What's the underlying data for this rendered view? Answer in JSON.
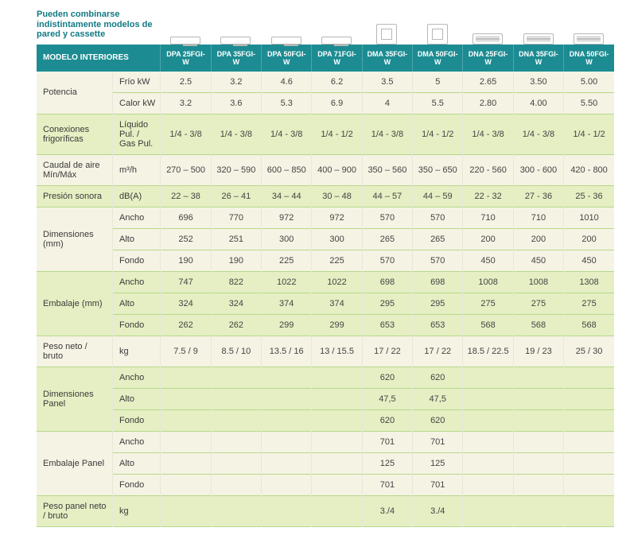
{
  "note": "Pueden combinarse indistintamente modelos de pared y cassette",
  "header": {
    "title": "MODELO INTERIORES",
    "models": [
      "DPA 25FGI-W",
      "DPA 35FGI-W",
      "DPA 50FGI-W",
      "DPA 71FGI-W",
      "DMA 35FGI-W",
      "DMA 50FGI-W",
      "DNA 25FGI-W",
      "DNA 35FGI-W",
      "DNA 50FGI-W"
    ]
  },
  "icon_types": [
    "wall",
    "wall",
    "wall",
    "wall",
    "cassette",
    "cassette",
    "duct",
    "duct",
    "duct"
  ],
  "colors": {
    "header_bg": "#1c8c92",
    "row_alt_a": "#f5f3e4",
    "row_alt_b": "#e5efc3",
    "row_border": "#b6d88b",
    "title_note": "#127a84"
  },
  "groups": [
    {
      "label": "Potencia",
      "bg": 0,
      "rows": [
        {
          "sub": "Frío kW",
          "v": [
            "2.5",
            "3.2",
            "4.6",
            "6.2",
            "3.5",
            "5",
            "2.65",
            "3.50",
            "5.00"
          ]
        },
        {
          "sub": "Calor kW",
          "v": [
            "3.2",
            "3.6",
            "5.3",
            "6.9",
            "4",
            "5.5",
            "2.80",
            "4.00",
            "5.50"
          ]
        }
      ]
    },
    {
      "label": "Conexiones frigoríficas",
      "bg": 1,
      "rows": [
        {
          "sub": "Líquido Pul. / Gas Pul.",
          "v": [
            "1/4 - 3/8",
            "1/4 - 3/8",
            "1/4 - 3/8",
            "1/4 - 1/2",
            "1/4 - 3/8",
            "1/4 - 1/2",
            "1/4 - 3/8",
            "1/4 - 3/8",
            "1/4 - 1/2"
          ]
        }
      ]
    },
    {
      "label": "Caudal de aire Mín/Máx",
      "bg": 0,
      "rows": [
        {
          "sub": "m³/h",
          "v": [
            "270 – 500",
            "320 – 590",
            "600 – 850",
            "400 – 900",
            "350 – 560",
            "350 – 650",
            "220 - 560",
            "300 - 600",
            "420 - 800"
          ]
        }
      ]
    },
    {
      "label": "Presión sonora",
      "bg": 1,
      "rows": [
        {
          "sub": "dB(A)",
          "v": [
            "22 – 38",
            "26 – 41",
            "34 – 44",
            "30 – 48",
            "44 – 57",
            "44 – 59",
            "22 - 32",
            "27 - 36",
            "25 - 36"
          ]
        }
      ]
    },
    {
      "label": "Dimensiones (mm)",
      "bg": 0,
      "rows": [
        {
          "sub": "Ancho",
          "v": [
            "696",
            "770",
            "972",
            "972",
            "570",
            "570",
            "710",
            "710",
            "1010"
          ]
        },
        {
          "sub": "Alto",
          "v": [
            "252",
            "251",
            "300",
            "300",
            "265",
            "265",
            "200",
            "200",
            "200"
          ]
        },
        {
          "sub": "Fondo",
          "v": [
            "190",
            "190",
            "225",
            "225",
            "570",
            "570",
            "450",
            "450",
            "450"
          ]
        }
      ]
    },
    {
      "label": "Embalaje (mm)",
      "bg": 1,
      "rows": [
        {
          "sub": "Ancho",
          "v": [
            "747",
            "822",
            "1022",
            "1022",
            "698",
            "698",
            "1008",
            "1008",
            "1308"
          ]
        },
        {
          "sub": "Alto",
          "v": [
            "324",
            "324",
            "374",
            "374",
            "295",
            "295",
            "275",
            "275",
            "275"
          ]
        },
        {
          "sub": "Fondo",
          "v": [
            "262",
            "262",
            "299",
            "299",
            "653",
            "653",
            "568",
            "568",
            "568"
          ]
        }
      ]
    },
    {
      "label": "Peso neto / bruto",
      "bg": 0,
      "rows": [
        {
          "sub": "kg",
          "v": [
            "7.5 / 9",
            "8.5 / 10",
            "13.5 / 16",
            "13 / 15.5",
            "17 / 22",
            "17 / 22",
            "18.5 / 22.5",
            "19 / 23",
            "25 / 30"
          ]
        }
      ]
    },
    {
      "label": "Dimensiones Panel",
      "bg": 1,
      "rows": [
        {
          "sub": "Ancho",
          "v": [
            "",
            "",
            "",
            "",
            "620",
            "620",
            "",
            "",
            ""
          ]
        },
        {
          "sub": "Alto",
          "v": [
            "",
            "",
            "",
            "",
            "47,5",
            "47,5",
            "",
            "",
            ""
          ]
        },
        {
          "sub": "Fondo",
          "v": [
            "",
            "",
            "",
            "",
            "620",
            "620",
            "",
            "",
            ""
          ]
        }
      ]
    },
    {
      "label": "Embalaje Panel",
      "bg": 0,
      "rows": [
        {
          "sub": "Ancho",
          "v": [
            "",
            "",
            "",
            "",
            "701",
            "701",
            "",
            "",
            ""
          ]
        },
        {
          "sub": "Alto",
          "v": [
            "",
            "",
            "",
            "",
            "125",
            "125",
            "",
            "",
            ""
          ]
        },
        {
          "sub": "Fondo",
          "v": [
            "",
            "",
            "",
            "",
            "701",
            "701",
            "",
            "",
            ""
          ]
        }
      ]
    },
    {
      "label": "Peso panel neto / bruto",
      "bg": 1,
      "rows": [
        {
          "sub": "kg",
          "v": [
            "",
            "",
            "",
            "",
            "3./4",
            "3./4",
            "",
            "",
            ""
          ]
        }
      ]
    }
  ]
}
